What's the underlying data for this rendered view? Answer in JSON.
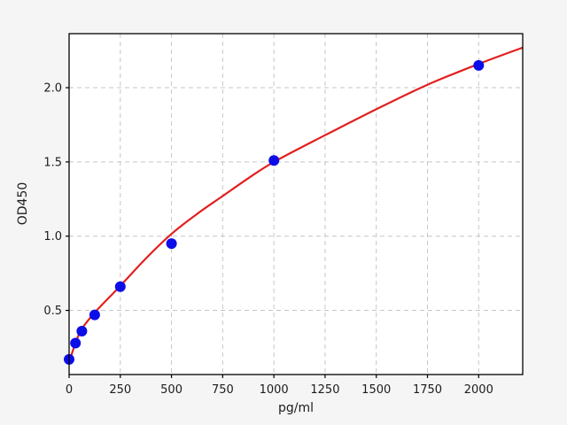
{
  "figure": {
    "background_color": "#f5f5f5",
    "plot_background_color": "#ffffff",
    "spine_color": "#000000",
    "grid_color": "#c6c6c6",
    "text_color": "#1c1c1c"
  },
  "chart_data": {
    "type": "scatter",
    "title": "",
    "xlabel": "pg/ml",
    "ylabel": "OD450",
    "grid": true,
    "grid_style": "dashed",
    "legend": "none",
    "xlim": [
      0,
      2215
    ],
    "ylim": [
      0.068,
      2.364
    ],
    "xticks": [
      0,
      250,
      500,
      750,
      1000,
      1250,
      1500,
      1750,
      2000
    ],
    "xtick_labels": [
      "0",
      "250",
      "500",
      "750",
      "1000",
      "1250",
      "1500",
      "1750",
      "2000"
    ],
    "yticks": [
      0.5,
      1.0,
      1.5,
      2.0
    ],
    "ytick_labels": [
      "0.5",
      "1.0",
      "1.5",
      "2.0"
    ],
    "series": [
      {
        "name": "standard-points",
        "type": "scatter",
        "color": "#0d0de8",
        "marker": "circle",
        "marker_radius": 6,
        "x": [
          0,
          31.25,
          62.5,
          125,
          250,
          500,
          1000,
          2000
        ],
        "y": [
          0.17,
          0.28,
          0.36,
          0.47,
          0.66,
          0.95,
          1.51,
          2.15
        ]
      },
      {
        "name": "fit-curve",
        "type": "line",
        "color": "#e21f1f",
        "width": 2.2,
        "x": [
          0,
          31,
          62,
          125,
          250,
          375,
          500,
          625,
          750,
          875,
          1000,
          1250,
          1500,
          1750,
          2000,
          2215
        ],
        "y": [
          0.15,
          0.28,
          0.375,
          0.485,
          0.665,
          0.85,
          1.015,
          1.15,
          1.27,
          1.39,
          1.5,
          1.68,
          1.855,
          2.02,
          2.16,
          2.27
        ]
      }
    ]
  }
}
